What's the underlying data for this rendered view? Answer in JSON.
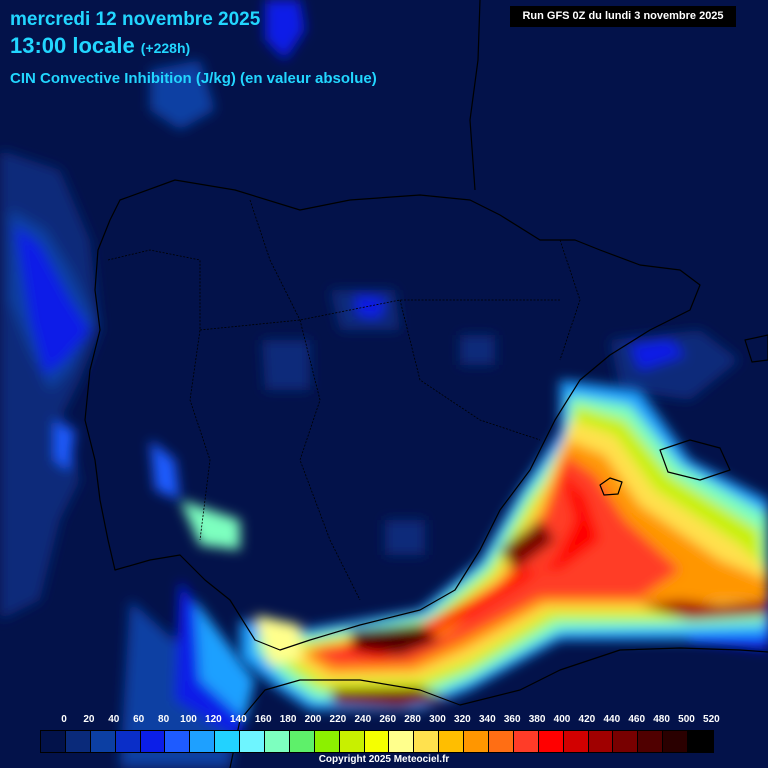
{
  "header": {
    "date": "mercredi 12 novembre 2025",
    "time": "13:00 locale",
    "offset": "(+228h)",
    "parameter": "CIN Convective Inhibition (J/kg) (en valeur absolue)"
  },
  "run_label": "Run GFS 0Z du lundi 3 novembre 2025",
  "legend": {
    "labels": [
      "0",
      "20",
      "40",
      "60",
      "80",
      "100",
      "120",
      "140",
      "160",
      "180",
      "200",
      "220",
      "240",
      "260",
      "280",
      "300",
      "320",
      "340",
      "360",
      "380",
      "400",
      "420",
      "440",
      "460",
      "480",
      "500",
      "520"
    ],
    "colors": [
      "#02124a",
      "#0a2a7a",
      "#0c3fa3",
      "#0a2ec8",
      "#0b1ee8",
      "#1e5bff",
      "#1ea0ff",
      "#22d2ff",
      "#6ef5ff",
      "#7dffbf",
      "#5ef06a",
      "#8cf000",
      "#c8f000",
      "#f5ff00",
      "#ffff8c",
      "#ffe14e",
      "#ffbe00",
      "#ff9600",
      "#ff6e14",
      "#ff3c28",
      "#ff0000",
      "#d20000",
      "#a00000",
      "#780000",
      "#500000",
      "#2a0000",
      "#000000"
    ]
  },
  "copyright": "Copyright 2025 Meteociel.fr"
}
